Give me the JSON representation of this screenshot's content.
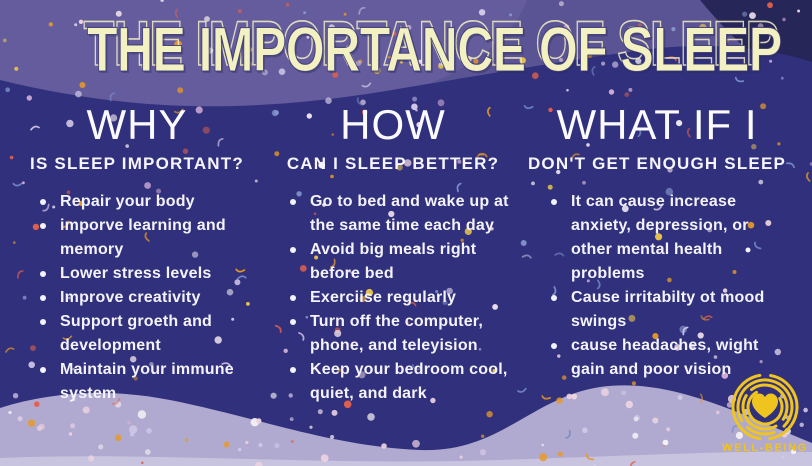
{
  "title": "THE IMPORTANCE OF SLEEP",
  "columns": [
    {
      "heading": "WHY",
      "subheading": "IS SLEEP IMPORTANT?",
      "bullets": [
        "Repair your body",
        "imporve learning and memory",
        "Lower stress levels",
        "Improve creativity",
        "Support groeth and development",
        "Maintain your immune system"
      ]
    },
    {
      "heading": "HOW",
      "subheading": "CAN I SLEEP BETTER?",
      "bullets": [
        "Go to bed and wake up at the same time each day",
        "Avoid big meals right before bed",
        "Exerciise regularly",
        "Turn off the computer, phone, and teleyision",
        "Keep your bedroom cool, quiet, and dark"
      ]
    },
    {
      "heading": "WHAT IF I",
      "subheading": "DON'T GET ENOUGH SLEEP",
      "bullets": [
        "It can cause increase anxiety, depression, or other mental health problems",
        "Cause irritabilty ot mood swings",
        "cause headaches, wight gain and poor vision"
      ]
    }
  ],
  "logo": {
    "label": "WELL-BEING",
    "icon": "heart-in-rings-icon"
  },
  "palette": {
    "background_indigo": "#30307c",
    "band_purple": "#5b5494",
    "corner_navy": "#272659",
    "wave_lavender": "#b0aad0",
    "wave_light_edge": "#cbc6e1",
    "title_cream": "#f3f0c2",
    "text_white": "#f4f2fa",
    "logo_yellow": "#f0c41f",
    "confetti_dots": [
      "#ecd3e0",
      "#d5cbe9",
      "#e89a24",
      "#f4f0f4",
      "#e2604c",
      "#8a9bd0",
      "#e6c24d",
      "#d3aed6",
      "#f0e2ec"
    ],
    "confetti_strokes": [
      "#e2604c",
      "#7b8fc9",
      "#e89a24",
      "#cfc0e6"
    ]
  }
}
